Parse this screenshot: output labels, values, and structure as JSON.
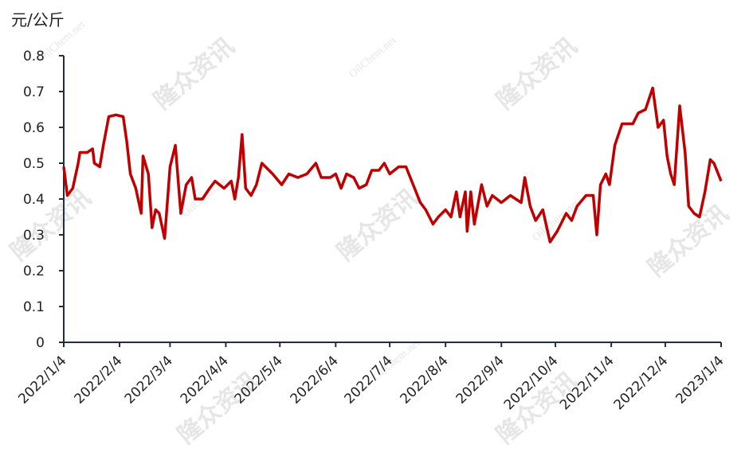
{
  "chart_data": {
    "type": "line",
    "y_label": "元/公斤",
    "watermarks": [
      "隆众资讯",
      "OilChem.net"
    ],
    "x": [
      "2022/1/4",
      "2022/1/6",
      "2022/1/9",
      "2022/1/12",
      "2022/1/13",
      "2022/1/17",
      "2022/1/20",
      "2022/1/21",
      "2022/1/24",
      "2022/1/26",
      "2022/1/29",
      "2022/2/2",
      "2022/2/6",
      "2022/2/8",
      "2022/2/10",
      "2022/2/13",
      "2022/2/16",
      "2022/2/17",
      "2022/2/20",
      "2022/2/22",
      "2022/2/24",
      "2022/2/26",
      "2022/3/1",
      "2022/3/4",
      "2022/3/7",
      "2022/3/10",
      "2022/3/13",
      "2022/3/16",
      "2022/3/18",
      "2022/3/22",
      "2022/3/26",
      "2022/3/29",
      "2022/4/3",
      "2022/4/7",
      "2022/4/9",
      "2022/4/11",
      "2022/4/13",
      "2022/4/15",
      "2022/4/18",
      "2022/4/21",
      "2022/4/24",
      "2022/4/30",
      "2022/5/5",
      "2022/5/9",
      "2022/5/14",
      "2022/5/19",
      "2022/5/24",
      "2022/5/27",
      "2022/6/1",
      "2022/6/4",
      "2022/6/7",
      "2022/6/10",
      "2022/6/14",
      "2022/6/17",
      "2022/6/21",
      "2022/6/24",
      "2022/6/28",
      "2022/7/1",
      "2022/7/4",
      "2022/7/9",
      "2022/7/13",
      "2022/7/17",
      "2022/7/21",
      "2022/7/24",
      "2022/7/28",
      "2022/7/31",
      "2022/8/4",
      "2022/8/7",
      "2022/8/10",
      "2022/8/12",
      "2022/8/15",
      "2022/8/16",
      "2022/8/18",
      "2022/8/20",
      "2022/8/24",
      "2022/8/27",
      "2022/8/30",
      "2022/9/4",
      "2022/9/9",
      "2022/9/15",
      "2022/9/17",
      "2022/9/20",
      "2022/9/23",
      "2022/9/27",
      "2022/10/1",
      "2022/10/5",
      "2022/10/10",
      "2022/10/13",
      "2022/10/16",
      "2022/10/21",
      "2022/10/25",
      "2022/10/27",
      "2022/10/29",
      "2022/11/1",
      "2022/11/3",
      "2022/11/6",
      "2022/11/10",
      "2022/11/16",
      "2022/11/19",
      "2022/11/23",
      "2022/11/27",
      "2022/11/30",
      "2022/12/3",
      "2022/12/5",
      "2022/12/7",
      "2022/12/9",
      "2022/12/12",
      "2022/12/15",
      "2022/12/17",
      "2022/12/20",
      "2022/12/23",
      "2022/12/26",
      "2022/12/29",
      "2022/12/31",
      "2023/1/4"
    ],
    "series": [
      {
        "color": "#c00000",
        "values": [
          0.49,
          0.41,
          0.43,
          0.5,
          0.53,
          0.53,
          0.54,
          0.5,
          0.49,
          0.55,
          0.63,
          0.635,
          0.63,
          0.56,
          0.47,
          0.43,
          0.36,
          0.52,
          0.47,
          0.32,
          0.37,
          0.36,
          0.29,
          0.49,
          0.55,
          0.36,
          0.44,
          0.46,
          0.4,
          0.4,
          0.43,
          0.45,
          0.43,
          0.45,
          0.4,
          0.46,
          0.58,
          0.43,
          0.41,
          0.44,
          0.5,
          0.47,
          0.44,
          0.47,
          0.46,
          0.47,
          0.5,
          0.46,
          0.46,
          0.47,
          0.43,
          0.47,
          0.46,
          0.43,
          0.44,
          0.48,
          0.48,
          0.5,
          0.47,
          0.49,
          0.49,
          0.44,
          0.39,
          0.37,
          0.33,
          0.35,
          0.37,
          0.35,
          0.42,
          0.35,
          0.42,
          0.31,
          0.42,
          0.33,
          0.44,
          0.38,
          0.41,
          0.39,
          0.41,
          0.39,
          0.46,
          0.38,
          0.34,
          0.37,
          0.28,
          0.31,
          0.36,
          0.34,
          0.38,
          0.41,
          0.41,
          0.3,
          0.44,
          0.47,
          0.44,
          0.55,
          0.61,
          0.61,
          0.64,
          0.65,
          0.71,
          0.6,
          0.62,
          0.52,
          0.47,
          0.44,
          0.66,
          0.53,
          0.38,
          0.36,
          0.35,
          0.42,
          0.51,
          0.5,
          0.45
        ]
      }
    ],
    "xlim": [
      "2022/1/4",
      "2023/1/4"
    ],
    "xticks": [
      "2022/1/4",
      "2022/2/4",
      "2022/3/4",
      "2022/4/4",
      "2022/5/4",
      "2022/6/4",
      "2022/7/4",
      "2022/8/4",
      "2022/9/4",
      "2022/10/4",
      "2022/11/4",
      "2022/12/4",
      "2023/1/4"
    ],
    "ylim": [
      0,
      0.8
    ],
    "yticks": [
      0,
      0.1,
      0.2,
      0.3,
      0.4,
      0.5,
      0.6,
      0.7,
      0.8
    ]
  }
}
